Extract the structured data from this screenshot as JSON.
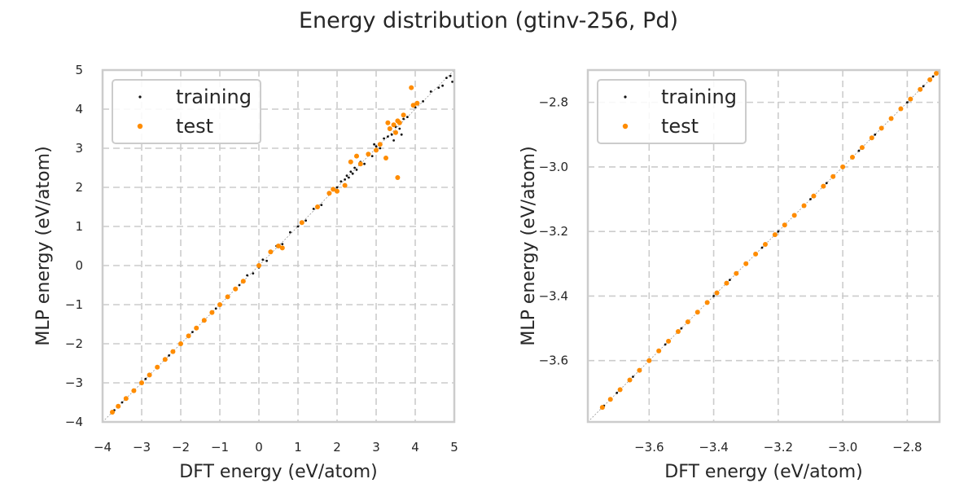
{
  "figure": {
    "title": "Energy distribution (gtinv-256, Pd)"
  },
  "colors": {
    "training": "#111111",
    "test": "#ff8c00",
    "grid": "#cccccc",
    "frame": "#cccccc",
    "diagonal": "#999999"
  },
  "chart_data": [
    {
      "type": "scatter",
      "xlabel": "DFT energy (eV/atom)",
      "ylabel": "MLP energy (eV/atom)",
      "xlim": [
        -4,
        5
      ],
      "ylim": [
        -4,
        5
      ],
      "xticks": [
        -4,
        -3,
        -2,
        -1,
        0,
        1,
        2,
        3,
        4,
        5
      ],
      "yticks": [
        -4,
        -3,
        -2,
        -1,
        0,
        1,
        2,
        3,
        4,
        5
      ],
      "xtick_labels": [
        "−4",
        "−3",
        "−2",
        "−1",
        "0",
        "1",
        "2",
        "3",
        "4",
        "5"
      ],
      "ytick_labels": [
        "−4",
        "−3",
        "−2",
        "−1",
        "0",
        "1",
        "2",
        "3",
        "4",
        "5"
      ],
      "grid": true,
      "legend_position": "top-left",
      "series": [
        {
          "name": "training",
          "x": [
            -3.7,
            -3.5,
            -3.2,
            -2.9,
            -2.6,
            -2.3,
            -2.0,
            -1.7,
            -1.4,
            -1.1,
            -0.8,
            -0.5,
            -0.3,
            -0.15,
            0.0,
            0.1,
            0.2,
            0.3,
            0.45,
            0.6,
            0.8,
            1.0,
            1.2,
            1.4,
            1.6,
            1.8,
            2.0,
            2.1,
            2.2,
            2.25,
            2.3,
            2.35,
            2.4,
            2.45,
            2.5,
            2.6,
            2.7,
            2.8,
            2.9,
            3.0,
            3.1,
            3.2,
            3.3,
            3.4,
            3.5,
            3.6,
            3.7,
            3.8,
            4.0,
            4.2,
            4.4,
            4.6,
            4.8,
            4.9,
            3.45,
            3.55,
            2.95,
            3.65,
            4.95,
            4.7
          ],
          "y": [
            -3.7,
            -3.5,
            -3.2,
            -2.9,
            -2.6,
            -2.3,
            -2.0,
            -1.7,
            -1.4,
            -1.1,
            -0.8,
            -0.5,
            -0.25,
            -0.2,
            -0.05,
            0.15,
            0.12,
            0.35,
            0.5,
            0.55,
            0.85,
            1.0,
            1.15,
            1.45,
            1.55,
            1.85,
            2.0,
            2.15,
            2.2,
            2.3,
            2.25,
            2.4,
            2.35,
            2.5,
            2.45,
            2.65,
            2.6,
            2.85,
            2.8,
            3.05,
            3.0,
            3.25,
            3.3,
            3.35,
            3.55,
            3.5,
            3.75,
            3.8,
            4.05,
            4.2,
            4.45,
            4.55,
            4.8,
            4.85,
            3.2,
            3.7,
            3.1,
            3.35,
            4.7,
            4.6
          ]
        },
        {
          "name": "test",
          "x": [
            -3.75,
            -3.6,
            -3.4,
            -3.2,
            -3.0,
            -2.8,
            -2.6,
            -2.4,
            -2.2,
            -2.0,
            -1.8,
            -1.6,
            -1.4,
            -1.2,
            -1.0,
            -0.8,
            -0.6,
            -0.4,
            0.0,
            0.3,
            0.5,
            0.6,
            1.1,
            1.5,
            1.8,
            1.9,
            2.0,
            2.2,
            2.35,
            2.5,
            2.6,
            2.8,
            3.0,
            3.1,
            3.25,
            3.3,
            3.35,
            3.45,
            3.5,
            3.55,
            3.6,
            3.7,
            3.9,
            4.05,
            3.95,
            3.55
          ],
          "y": [
            -3.75,
            -3.6,
            -3.4,
            -3.2,
            -3.0,
            -2.8,
            -2.6,
            -2.4,
            -2.2,
            -2.0,
            -1.8,
            -1.6,
            -1.4,
            -1.2,
            -1.0,
            -0.8,
            -0.6,
            -0.4,
            0.0,
            0.35,
            0.5,
            0.45,
            1.1,
            1.5,
            1.85,
            1.95,
            1.9,
            2.05,
            2.65,
            2.8,
            2.6,
            2.85,
            2.95,
            3.1,
            2.75,
            3.65,
            3.5,
            3.6,
            3.4,
            3.7,
            3.65,
            3.85,
            4.55,
            4.15,
            4.1,
            2.25
          ]
        }
      ]
    },
    {
      "type": "scatter",
      "xlabel": "DFT energy (eV/atom)",
      "ylabel": "MLP energy (eV/atom)",
      "xlim": [
        -3.79,
        -2.7
      ],
      "ylim": [
        -3.79,
        -2.7
      ],
      "xticks": [
        -3.6,
        -3.4,
        -3.2,
        -3.0,
        -2.8
      ],
      "yticks": [
        -3.6,
        -3.4,
        -3.2,
        -3.0,
        -2.8
      ],
      "xtick_labels": [
        "−3.6",
        "−3.4",
        "−3.2",
        "−3.0",
        "−2.8"
      ],
      "ytick_labels": [
        "−3.6",
        "−3.4",
        "−3.2",
        "−3.0",
        "−2.8"
      ],
      "grid": true,
      "legend_position": "top-left",
      "series": [
        {
          "name": "training",
          "x": [
            -3.74,
            -3.7,
            -3.65,
            -3.6,
            -3.55,
            -3.5,
            -3.45,
            -3.4,
            -3.35,
            -3.3,
            -3.25,
            -3.2,
            -3.15,
            -3.1,
            -3.05,
            -3.0,
            -2.95,
            -2.9,
            -2.85,
            -2.8,
            -2.75,
            -2.72
          ],
          "y": [
            -3.74,
            -3.7,
            -3.65,
            -3.6,
            -3.55,
            -3.5,
            -3.45,
            -3.4,
            -3.35,
            -3.3,
            -3.25,
            -3.2,
            -3.15,
            -3.1,
            -3.05,
            -3.0,
            -2.95,
            -2.9,
            -2.85,
            -2.8,
            -2.75,
            -2.72
          ]
        },
        {
          "name": "test",
          "x": [
            -3.745,
            -3.72,
            -3.69,
            -3.66,
            -3.63,
            -3.6,
            -3.57,
            -3.54,
            -3.51,
            -3.48,
            -3.45,
            -3.42,
            -3.39,
            -3.36,
            -3.33,
            -3.3,
            -3.27,
            -3.24,
            -3.21,
            -3.18,
            -3.15,
            -3.12,
            -3.09,
            -3.06,
            -3.03,
            -3.0,
            -2.97,
            -2.94,
            -2.91,
            -2.88,
            -2.85,
            -2.82,
            -2.79,
            -2.76,
            -2.73,
            -2.71
          ],
          "y": [
            -3.745,
            -3.72,
            -3.69,
            -3.66,
            -3.63,
            -3.6,
            -3.57,
            -3.54,
            -3.51,
            -3.48,
            -3.45,
            -3.42,
            -3.39,
            -3.36,
            -3.33,
            -3.3,
            -3.27,
            -3.24,
            -3.21,
            -3.18,
            -3.15,
            -3.12,
            -3.09,
            -3.06,
            -3.03,
            -3.0,
            -2.97,
            -2.94,
            -2.91,
            -2.88,
            -2.85,
            -2.82,
            -2.79,
            -2.76,
            -2.73,
            -2.71
          ]
        }
      ]
    }
  ]
}
